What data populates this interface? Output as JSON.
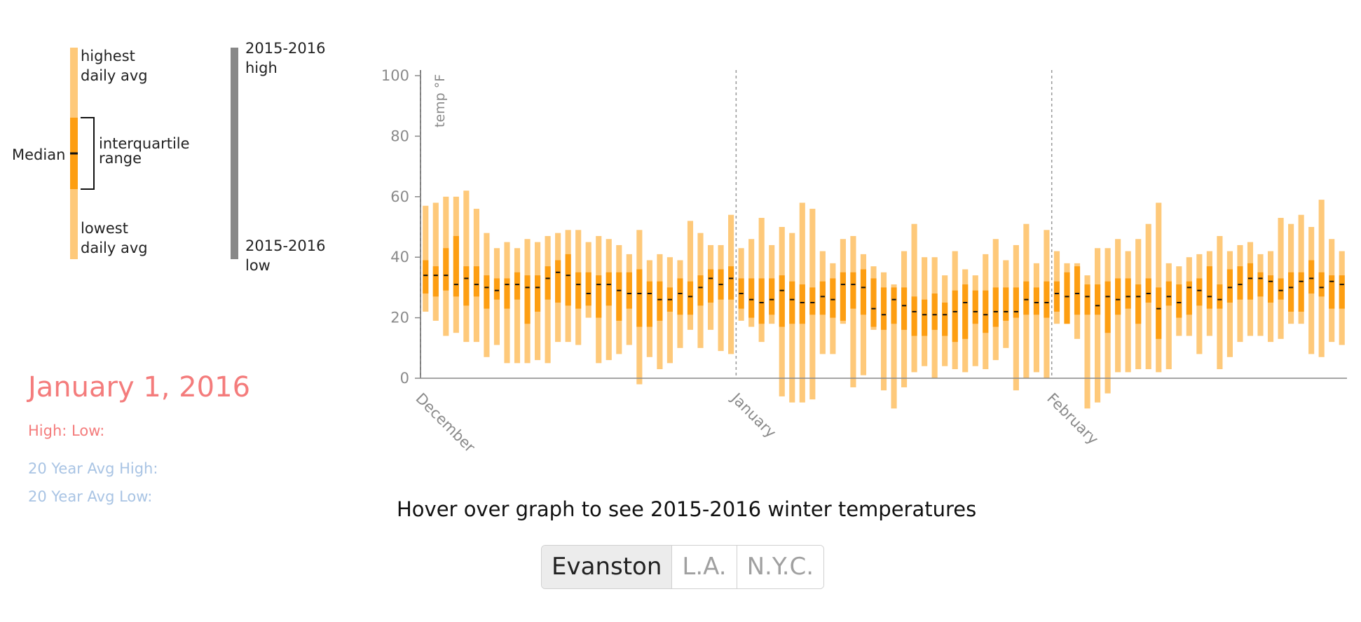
{
  "legend": {
    "highest_line1": "highest",
    "highest_line2": "daily avg",
    "iqr_line1": "interquartile",
    "iqr_line2": "range",
    "median": "Median",
    "lowest_line1": "lowest",
    "lowest_line2": "daily avg",
    "season_high_line1": "2015-2016",
    "season_high_line2": "high",
    "season_low_line1": "2015-2016",
    "season_low_line2": "low"
  },
  "info": {
    "date": "January 1, 2016",
    "high_low": "High: Low:",
    "avg_high": "20 Year Avg High:",
    "avg_low": "20 Year Avg Low:"
  },
  "hover_prompt": "Hover over graph to see 2015-2016 winter temperatures",
  "cities": [
    {
      "label": "Evanston",
      "active": true
    },
    {
      "label": "L.A.",
      "active": false
    },
    {
      "label": "N.Y.C.",
      "active": false
    }
  ],
  "colors": {
    "range": "#fec97a",
    "iqr": "#fd9e12",
    "median": "#111111",
    "season_bar": "#888888",
    "date_text": "#f47c7c",
    "avg_text": "#a9c4e4"
  },
  "chart_data": {
    "type": "boxplot-range",
    "ylabel": "temp °F",
    "ylim": [
      0,
      100
    ],
    "yticks": [
      0,
      20,
      40,
      60,
      80,
      100
    ],
    "month_labels": [
      {
        "label": "December",
        "day_index": 0
      },
      {
        "label": "January",
        "day_index": 31
      },
      {
        "label": "February",
        "day_index": 62
      }
    ],
    "days": [
      {
        "low": 22,
        "q1": 28,
        "median": 34,
        "q3": 39,
        "high": 57
      },
      {
        "low": 19,
        "q1": 27,
        "median": 34,
        "q3": 37,
        "high": 58
      },
      {
        "low": 14,
        "q1": 29,
        "median": 34,
        "q3": 43,
        "high": 60
      },
      {
        "low": 15,
        "q1": 27,
        "median": 31,
        "q3": 47,
        "high": 60
      },
      {
        "low": 12,
        "q1": 24,
        "median": 33,
        "q3": 37,
        "high": 62
      },
      {
        "low": 12,
        "q1": 27,
        "median": 31,
        "q3": 37,
        "high": 56
      },
      {
        "low": 7,
        "q1": 23,
        "median": 30,
        "q3": 34,
        "high": 48
      },
      {
        "low": 11,
        "q1": 26,
        "median": 29,
        "q3": 33,
        "high": 43
      },
      {
        "low": 5,
        "q1": 23,
        "median": 31,
        "q3": 33,
        "high": 45
      },
      {
        "low": 5,
        "q1": 26,
        "median": 31,
        "q3": 35,
        "high": 43
      },
      {
        "low": 5,
        "q1": 18,
        "median": 30,
        "q3": 34,
        "high": 46
      },
      {
        "low": 6,
        "q1": 22,
        "median": 30,
        "q3": 34,
        "high": 45
      },
      {
        "low": 5,
        "q1": 26,
        "median": 33,
        "q3": 37,
        "high": 47
      },
      {
        "low": 12,
        "q1": 25,
        "median": 35,
        "q3": 39,
        "high": 48
      },
      {
        "low": 12,
        "q1": 24,
        "median": 34,
        "q3": 41,
        "high": 49
      },
      {
        "low": 11,
        "q1": 23,
        "median": 31,
        "q3": 35,
        "high": 49
      },
      {
        "low": 20,
        "q1": 24,
        "median": 28,
        "q3": 35,
        "high": 45
      },
      {
        "low": 5,
        "q1": 20,
        "median": 31,
        "q3": 34,
        "high": 47
      },
      {
        "low": 6,
        "q1": 24,
        "median": 31,
        "q3": 35,
        "high": 46
      },
      {
        "low": 8,
        "q1": 19,
        "median": 29,
        "q3": 35,
        "high": 44
      },
      {
        "low": 11,
        "q1": 23,
        "median": 28,
        "q3": 35,
        "high": 41
      },
      {
        "low": -2,
        "q1": 17,
        "median": 28,
        "q3": 36,
        "high": 49
      },
      {
        "low": 7,
        "q1": 17,
        "median": 28,
        "q3": 32,
        "high": 39
      },
      {
        "low": 3,
        "q1": 19,
        "median": 26,
        "q3": 32,
        "high": 41
      },
      {
        "low": 5,
        "q1": 22,
        "median": 26,
        "q3": 30,
        "high": 40
      },
      {
        "low": 10,
        "q1": 21,
        "median": 28,
        "q3": 33,
        "high": 39
      },
      {
        "low": 16,
        "q1": 21,
        "median": 27,
        "q3": 32,
        "high": 52
      },
      {
        "low": 10,
        "q1": 24,
        "median": 30,
        "q3": 34,
        "high": 48
      },
      {
        "low": 16,
        "q1": 25,
        "median": 33,
        "q3": 36,
        "high": 44
      },
      {
        "low": 9,
        "q1": 26,
        "median": 31,
        "q3": 36,
        "high": 44
      },
      {
        "low": 8,
        "q1": 26,
        "median": 33,
        "q3": 37,
        "high": 54
      },
      {
        "low": 19,
        "q1": 23,
        "median": 28,
        "q3": 33,
        "high": 43
      },
      {
        "low": 17,
        "q1": 20,
        "median": 26,
        "q3": 33,
        "high": 46
      },
      {
        "low": 12,
        "q1": 18,
        "median": 25,
        "q3": 33,
        "high": 53
      },
      {
        "low": 18,
        "q1": 21,
        "median": 26,
        "q3": 33,
        "high": 44
      },
      {
        "low": -6,
        "q1": 17,
        "median": 29,
        "q3": 34,
        "high": 50
      },
      {
        "low": -8,
        "q1": 18,
        "median": 26,
        "q3": 32,
        "high": 48
      },
      {
        "low": -8,
        "q1": 18,
        "median": 25,
        "q3": 31,
        "high": 58
      },
      {
        "low": -7,
        "q1": 21,
        "median": 25,
        "q3": 30,
        "high": 56
      },
      {
        "low": 8,
        "q1": 21,
        "median": 27,
        "q3": 32,
        "high": 42
      },
      {
        "low": 8,
        "q1": 20,
        "median": 26,
        "q3": 33,
        "high": 38
      },
      {
        "low": 18,
        "q1": 19,
        "median": 31,
        "q3": 35,
        "high": 46
      },
      {
        "low": -3,
        "q1": 23,
        "median": 31,
        "q3": 35,
        "high": 47
      },
      {
        "low": 1,
        "q1": 21,
        "median": 30,
        "q3": 36,
        "high": 41
      },
      {
        "low": 16,
        "q1": 17,
        "median": 23,
        "q3": 33,
        "high": 37
      },
      {
        "low": -4,
        "q1": 16,
        "median": 21,
        "q3": 30,
        "high": 35
      },
      {
        "low": -10,
        "q1": 18,
        "median": 26,
        "q3": 30,
        "high": 31
      },
      {
        "low": -3,
        "q1": 16,
        "median": 24,
        "q3": 30,
        "high": 42
      },
      {
        "low": 2,
        "q1": 14,
        "median": 22,
        "q3": 27,
        "high": 51
      },
      {
        "low": 4,
        "q1": 14,
        "median": 21,
        "q3": 26,
        "high": 40
      },
      {
        "low": 0,
        "q1": 16,
        "median": 21,
        "q3": 28,
        "high": 40
      },
      {
        "low": 4,
        "q1": 14,
        "median": 21,
        "q3": 25,
        "high": 34
      },
      {
        "low": 3,
        "q1": 12,
        "median": 22,
        "q3": 29,
        "high": 42
      },
      {
        "low": 2,
        "q1": 13,
        "median": 25,
        "q3": 31,
        "high": 36
      },
      {
        "low": 4,
        "q1": 18,
        "median": 22,
        "q3": 29,
        "high": 34
      },
      {
        "low": 3,
        "q1": 15,
        "median": 21,
        "q3": 29,
        "high": 41
      },
      {
        "low": 6,
        "q1": 17,
        "median": 22,
        "q3": 30,
        "high": 46
      },
      {
        "low": 10,
        "q1": 19,
        "median": 22,
        "q3": 30,
        "high": 39
      },
      {
        "low": -4,
        "q1": 20,
        "median": 22,
        "q3": 30,
        "high": 44
      },
      {
        "low": 0,
        "q1": 21,
        "median": 26,
        "q3": 32,
        "high": 51
      },
      {
        "low": 2,
        "q1": 21,
        "median": 25,
        "q3": 30,
        "high": 38
      },
      {
        "low": 0,
        "q1": 20,
        "median": 25,
        "q3": 32,
        "high": 49
      },
      {
        "low": 18,
        "q1": 22,
        "median": 28,
        "q3": 32,
        "high": 42
      },
      {
        "low": 18,
        "q1": 18,
        "median": 27,
        "q3": 35,
        "high": 38
      },
      {
        "low": 13,
        "q1": 21,
        "median": 28,
        "q3": 37,
        "high": 38
      },
      {
        "low": -10,
        "q1": 21,
        "median": 27,
        "q3": 31,
        "high": 34
      },
      {
        "low": -8,
        "q1": 21,
        "median": 24,
        "q3": 31,
        "high": 43
      },
      {
        "low": -5,
        "q1": 15,
        "median": 27,
        "q3": 32,
        "high": 43
      },
      {
        "low": 2,
        "q1": 21,
        "median": 26,
        "q3": 33,
        "high": 46
      },
      {
        "low": 2,
        "q1": 23,
        "median": 27,
        "q3": 33,
        "high": 42
      },
      {
        "low": 3,
        "q1": 18,
        "median": 27,
        "q3": 31,
        "high": 46
      },
      {
        "low": 3,
        "q1": 25,
        "median": 28,
        "q3": 33,
        "high": 51
      },
      {
        "low": 2,
        "q1": 13,
        "median": 23,
        "q3": 30,
        "high": 58
      },
      {
        "low": 3,
        "q1": 24,
        "median": 27,
        "q3": 32,
        "high": 38
      },
      {
        "low": 14,
        "q1": 20,
        "median": 25,
        "q3": 31,
        "high": 37
      },
      {
        "low": 14,
        "q1": 21,
        "median": 30,
        "q3": 32,
        "high": 40
      },
      {
        "low": 8,
        "q1": 24,
        "median": 29,
        "q3": 33,
        "high": 41
      },
      {
        "low": 14,
        "q1": 23,
        "median": 27,
        "q3": 37,
        "high": 42
      },
      {
        "low": 3,
        "q1": 23,
        "median": 26,
        "q3": 31,
        "high": 47
      },
      {
        "low": 7,
        "q1": 25,
        "median": 30,
        "q3": 36,
        "high": 42
      },
      {
        "low": 12,
        "q1": 26,
        "median": 31,
        "q3": 37,
        "high": 44
      },
      {
        "low": 14,
        "q1": 26,
        "median": 33,
        "q3": 38,
        "high": 45
      },
      {
        "low": 14,
        "q1": 27,
        "median": 33,
        "q3": 35,
        "high": 41
      },
      {
        "low": 12,
        "q1": 25,
        "median": 32,
        "q3": 34,
        "high": 42
      },
      {
        "low": 13,
        "q1": 26,
        "median": 29,
        "q3": 33,
        "high": 53
      },
      {
        "low": 18,
        "q1": 22,
        "median": 30,
        "q3": 35,
        "high": 51
      },
      {
        "low": 18,
        "q1": 22,
        "median": 32,
        "q3": 35,
        "high": 54
      },
      {
        "low": 8,
        "q1": 28,
        "median": 33,
        "q3": 39,
        "high": 50
      },
      {
        "low": 7,
        "q1": 27,
        "median": 30,
        "q3": 35,
        "high": 59
      },
      {
        "low": 12,
        "q1": 23,
        "median": 32,
        "q3": 34,
        "high": 46
      },
      {
        "low": 11,
        "q1": 23,
        "median": 31,
        "q3": 34,
        "high": 42
      }
    ]
  }
}
